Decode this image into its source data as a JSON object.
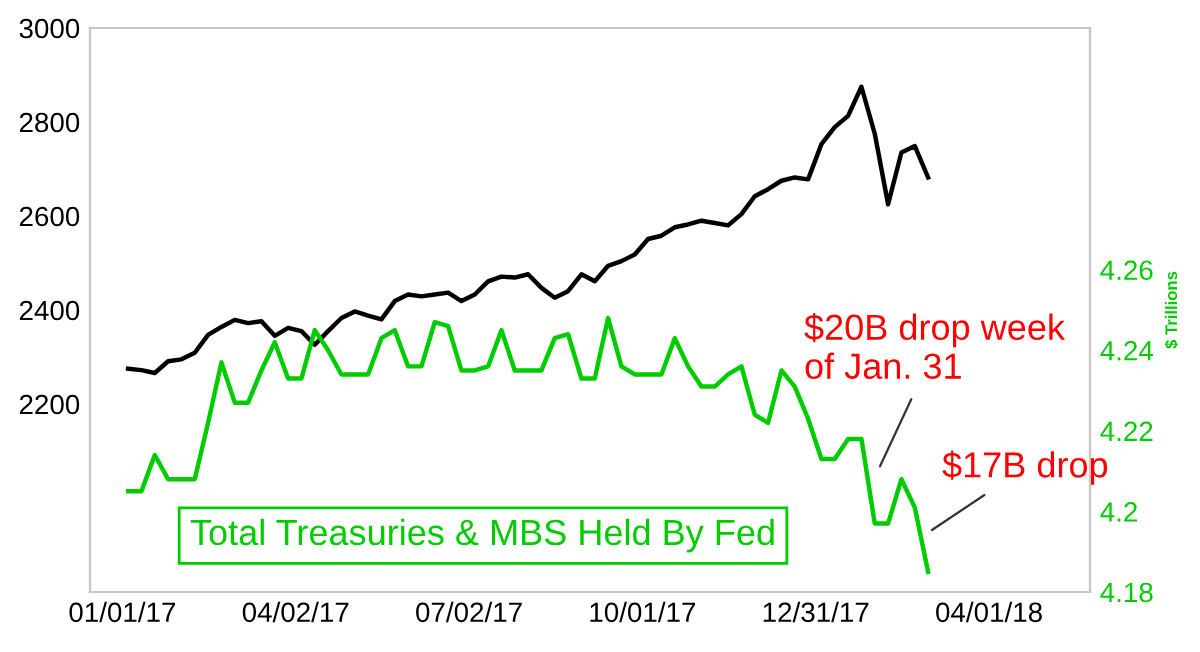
{
  "chart_data": {
    "type": "line",
    "x": [
      "2017-01-04",
      "2017-01-11",
      "2017-01-18",
      "2017-01-25",
      "2017-02-01",
      "2017-02-08",
      "2017-02-15",
      "2017-02-22",
      "2017-03-01",
      "2017-03-08",
      "2017-03-15",
      "2017-03-22",
      "2017-03-29",
      "2017-04-05",
      "2017-04-12",
      "2017-04-19",
      "2017-04-26",
      "2017-05-03",
      "2017-05-10",
      "2017-05-17",
      "2017-05-24",
      "2017-05-31",
      "2017-06-07",
      "2017-06-14",
      "2017-06-21",
      "2017-06-28",
      "2017-07-05",
      "2017-07-12",
      "2017-07-19",
      "2017-07-26",
      "2017-08-02",
      "2017-08-09",
      "2017-08-16",
      "2017-08-23",
      "2017-08-30",
      "2017-09-06",
      "2017-09-13",
      "2017-09-20",
      "2017-09-27",
      "2017-10-04",
      "2017-10-11",
      "2017-10-18",
      "2017-10-25",
      "2017-11-01",
      "2017-11-08",
      "2017-11-15",
      "2017-11-22",
      "2017-11-29",
      "2017-12-06",
      "2017-12-13",
      "2017-12-20",
      "2017-12-27",
      "2018-01-03",
      "2018-01-10",
      "2018-01-17",
      "2018-01-24",
      "2018-01-31",
      "2018-02-07",
      "2018-02-14",
      "2018-02-21",
      "2018-02-28"
    ],
    "series": [
      {
        "color": "#000000",
        "values": [
          2275,
          2272,
          2266,
          2291,
          2295,
          2309,
          2347,
          2364,
          2379,
          2372,
          2376,
          2345,
          2362,
          2355,
          2326,
          2355,
          2383,
          2397,
          2388,
          2380,
          2419,
          2433,
          2429,
          2433,
          2437,
          2419,
          2433,
          2461,
          2471,
          2469,
          2476,
          2447,
          2426,
          2440,
          2476,
          2461,
          2494,
          2504,
          2518,
          2551,
          2558,
          2576,
          2582,
          2590,
          2585,
          2580,
          2604,
          2642,
          2657,
          2675,
          2682,
          2678,
          2753,
          2789,
          2813,
          2875,
          2775,
          2625,
          2735,
          2749,
          2682
        ]
      },
      {
        "name": "Total Treasuries & MBS Held By Fed",
        "color": "#00cc00",
        "axis": "y2",
        "values": [
          4.205,
          4.205,
          4.214,
          4.208,
          4.208,
          4.208,
          4.222,
          4.237,
          4.227,
          4.227,
          4.235,
          4.242,
          4.233,
          4.233,
          4.245,
          4.24,
          4.234,
          4.234,
          4.234,
          4.243,
          4.245,
          4.236,
          4.236,
          4.247,
          4.246,
          4.235,
          4.235,
          4.236,
          4.245,
          4.235,
          4.235,
          4.235,
          4.243,
          4.244,
          4.233,
          4.233,
          4.248,
          4.236,
          4.234,
          4.234,
          4.234,
          4.243,
          4.236,
          4.231,
          4.231,
          4.234,
          4.236,
          4.224,
          4.222,
          4.235,
          4.231,
          4.223,
          4.213,
          4.213,
          4.218,
          4.218,
          4.197,
          4.197,
          4.208,
          4.201,
          4.185
        ]
      }
    ],
    "xlim": [
      "2016-12-15",
      "2018-05-24"
    ],
    "xticks": [
      {
        "value": "2017-01-01",
        "label": "01/01/17"
      },
      {
        "value": "2017-04-02",
        "label": "04/02/17"
      },
      {
        "value": "2017-07-02",
        "label": "07/02/17"
      },
      {
        "value": "2017-10-01",
        "label": "10/01/17"
      },
      {
        "value": "2017-12-31",
        "label": "12/31/17"
      },
      {
        "value": "2018-04-01",
        "label": "04/01/18"
      }
    ],
    "ylim": [
      1800,
      3000
    ],
    "yticks": [
      2200,
      2400,
      2600,
      2800,
      3000
    ],
    "y2lim": [
      4.18,
      4.32
    ],
    "y2ticks": [
      4.18,
      4.2,
      4.22,
      4.24,
      4.26
    ],
    "y2label": "$ Trillions",
    "annotations": [
      "$20B drop week\nof Jan. 31",
      "$17B drop"
    ],
    "grid": false,
    "legend": false,
    "marker": "none",
    "line_style": "solid"
  }
}
